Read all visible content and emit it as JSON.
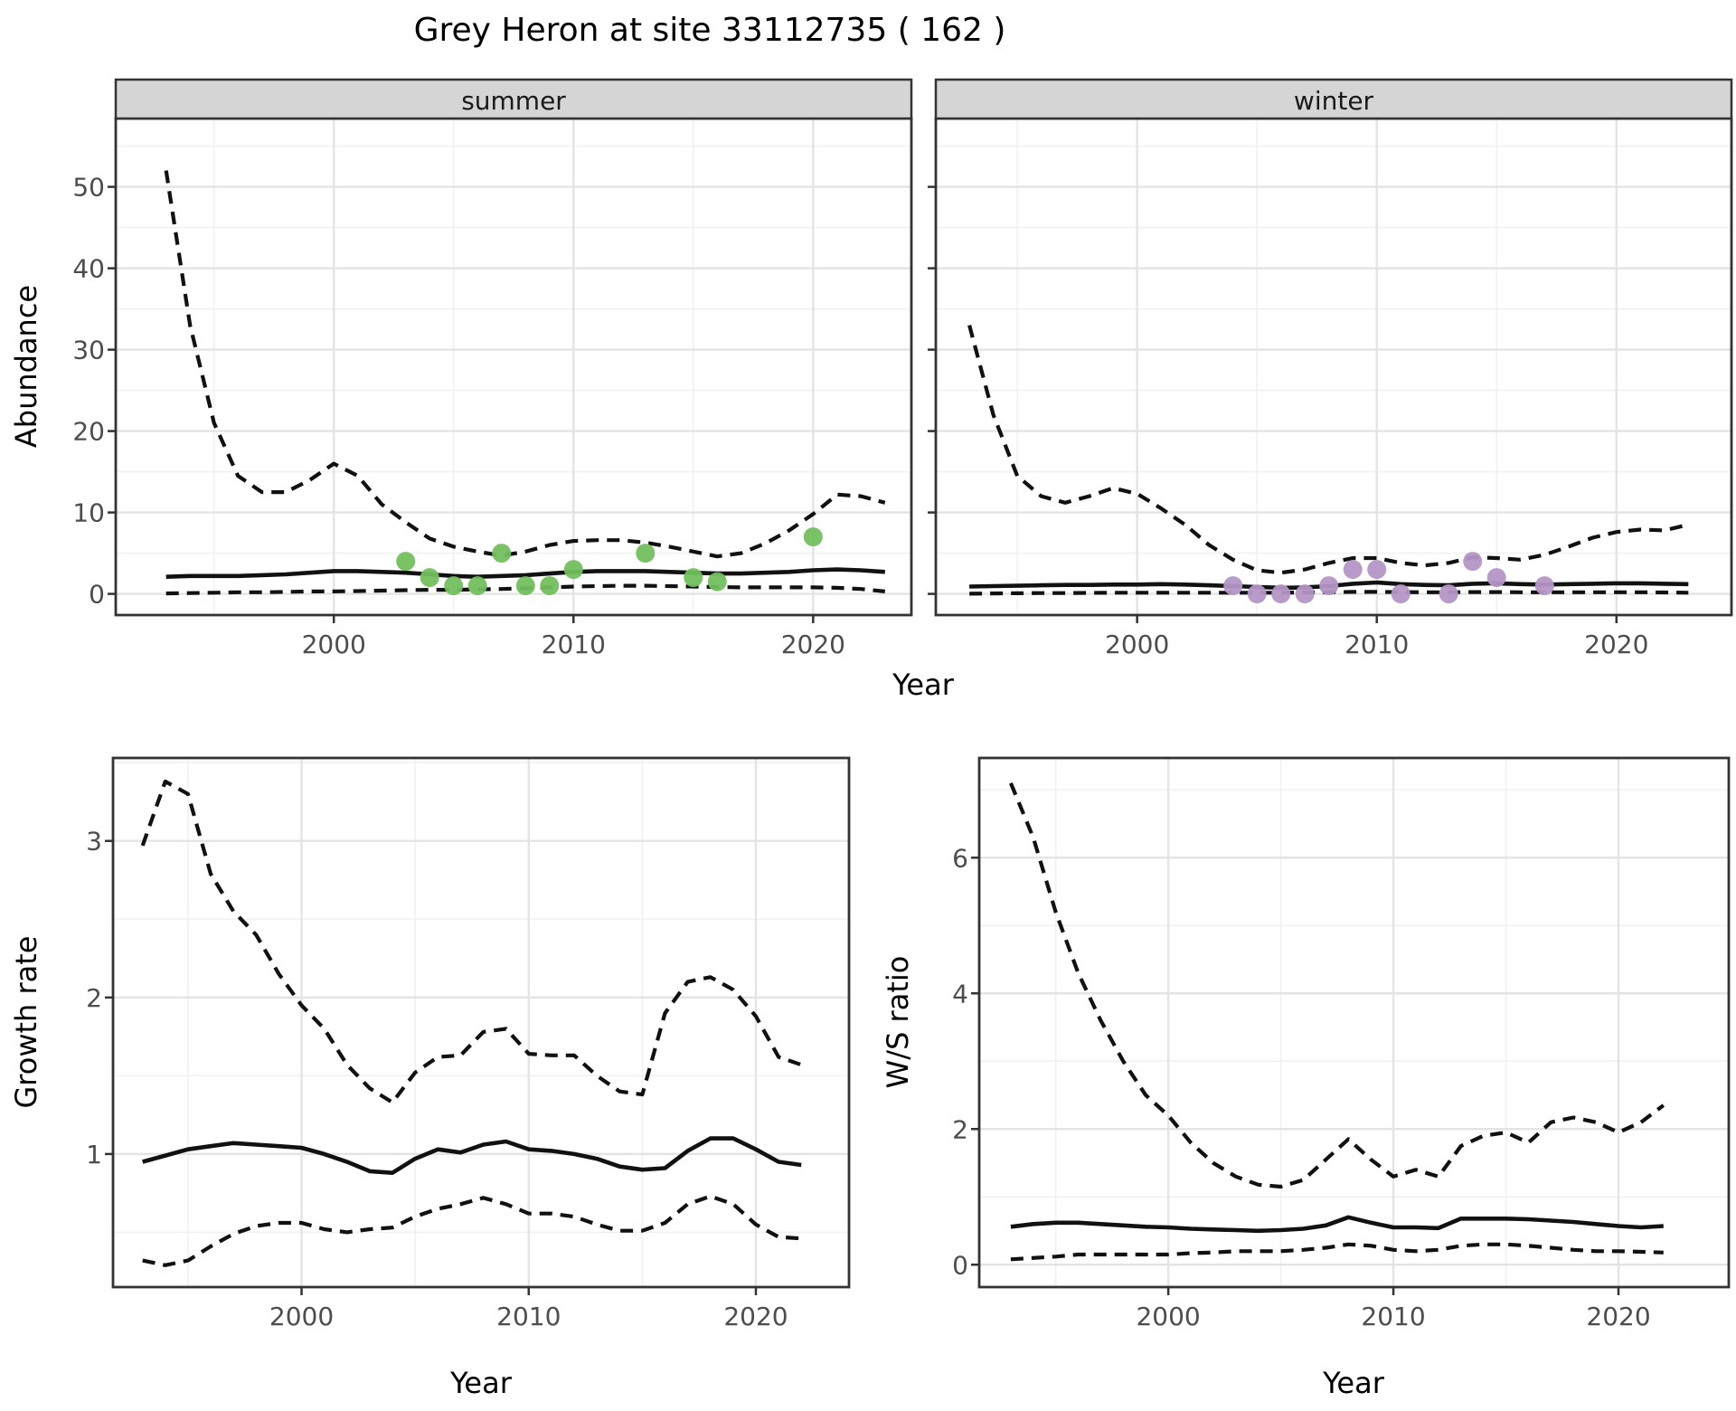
{
  "title": "Grey Heron at site 33112735 ( 162 )",
  "labels": {
    "x_axis": "Year"
  },
  "colors": {
    "summer_points": "#72c05e",
    "winter_points": "#b496c6",
    "fit_line": "#111111",
    "ci_line": "#111111",
    "strip_fill": "#d5d5d5",
    "panel_border": "#333333",
    "grid_major": "#e4e4e4",
    "grid_minor": "#f1f1f1",
    "tick_text": "#4d4d4d"
  },
  "chart_data": [
    {
      "id": "abundance-summer",
      "type": "line",
      "facet_label": "summer",
      "ylabel": "Abundance",
      "xlabel": "Year",
      "x_ticks": [
        2000,
        2010,
        2020
      ],
      "x_minor_ticks": [
        1995,
        2005,
        2015
      ],
      "y_ticks": [
        0,
        10,
        20,
        30,
        40,
        50
      ],
      "y_minor_ticks": [
        5,
        15,
        25,
        35,
        45,
        55
      ],
      "xlim": [
        1990.9,
        2024.1
      ],
      "ylim": [
        -2.6,
        58.4
      ],
      "x": [
        1993,
        1994,
        1995,
        1996,
        1997,
        1998,
        1999,
        2000,
        2001,
        2002,
        2003,
        2004,
        2005,
        2006,
        2007,
        2008,
        2009,
        2010,
        2011,
        2012,
        2013,
        2014,
        2015,
        2016,
        2017,
        2018,
        2019,
        2020,
        2021,
        2022,
        2023
      ],
      "series": [
        {
          "name": "upper-95ci",
          "style": "dashed",
          "values": [
            52,
            33,
            21,
            14.5,
            12.5,
            12.5,
            14,
            16,
            14.5,
            11,
            8.8,
            6.8,
            5.8,
            5.2,
            4.7,
            5.2,
            6.0,
            6.5,
            6.6,
            6.6,
            6.3,
            5.8,
            5.2,
            4.6,
            5.0,
            6.2,
            7.8,
            9.8,
            12.2,
            12.0,
            11.2
          ]
        },
        {
          "name": "median-fit",
          "style": "solid",
          "values": [
            2.1,
            2.2,
            2.2,
            2.2,
            2.3,
            2.4,
            2.6,
            2.8,
            2.8,
            2.7,
            2.6,
            2.4,
            2.2,
            2.1,
            2.2,
            2.3,
            2.5,
            2.7,
            2.8,
            2.8,
            2.8,
            2.7,
            2.6,
            2.5,
            2.5,
            2.6,
            2.7,
            2.9,
            3.0,
            2.9,
            2.7
          ]
        },
        {
          "name": "lower-95ci",
          "style": "dashed",
          "values": [
            0.05,
            0.1,
            0.15,
            0.2,
            0.2,
            0.25,
            0.3,
            0.3,
            0.35,
            0.4,
            0.45,
            0.5,
            0.5,
            0.55,
            0.6,
            0.7,
            0.8,
            0.9,
            0.95,
            1.0,
            1.0,
            0.95,
            0.9,
            0.85,
            0.8,
            0.8,
            0.8,
            0.8,
            0.75,
            0.6,
            0.3
          ]
        }
      ],
      "observations": {
        "name": "summer-counts",
        "color_key": "summer_points",
        "x": [
          2003,
          2004,
          2005,
          2006,
          2007,
          2008,
          2009,
          2010,
          2013,
          2015,
          2016,
          2020
        ],
        "values": [
          4,
          2,
          1,
          1,
          5,
          1,
          1,
          3,
          5,
          2,
          1.5,
          7
        ]
      }
    },
    {
      "id": "abundance-winter",
      "type": "line",
      "facet_label": "winter",
      "ylabel": "Abundance",
      "xlabel": "Year",
      "x_ticks": [
        2000,
        2010,
        2020
      ],
      "x_minor_ticks": [
        1995,
        2005,
        2015
      ],
      "y_ticks": [
        0,
        10,
        20,
        30,
        40,
        50
      ],
      "y_minor_ticks": [
        5,
        15,
        25,
        35,
        45,
        55
      ],
      "xlim": [
        1991.6,
        2024.8
      ],
      "ylim": [
        -2.6,
        58.4
      ],
      "x": [
        1993,
        1994,
        1995,
        1996,
        1997,
        1998,
        1999,
        2000,
        2001,
        2002,
        2003,
        2004,
        2005,
        2006,
        2007,
        2008,
        2009,
        2010,
        2011,
        2012,
        2013,
        2014,
        2015,
        2016,
        2017,
        2018,
        2019,
        2020,
        2021,
        2022,
        2023
      ],
      "series": [
        {
          "name": "upper-95ci",
          "style": "dashed",
          "values": [
            33,
            22,
            14.5,
            12,
            11.2,
            12,
            13,
            12.3,
            10.5,
            8.5,
            6.0,
            4.2,
            2.9,
            2.6,
            3.0,
            3.8,
            4.4,
            4.4,
            3.8,
            3.5,
            3.8,
            4.5,
            4.4,
            4.2,
            4.8,
            5.8,
            6.9,
            7.6,
            7.9,
            7.8,
            8.5
          ]
        },
        {
          "name": "median-fit",
          "style": "solid",
          "values": [
            0.9,
            0.95,
            1.0,
            1.05,
            1.1,
            1.1,
            1.15,
            1.15,
            1.2,
            1.15,
            1.05,
            0.95,
            0.85,
            0.75,
            0.8,
            0.95,
            1.25,
            1.4,
            1.2,
            1.1,
            1.05,
            1.25,
            1.3,
            1.2,
            1.15,
            1.2,
            1.25,
            1.3,
            1.3,
            1.25,
            1.2
          ]
        },
        {
          "name": "lower-95ci",
          "style": "dashed",
          "values": [
            0.02,
            0.05,
            0.08,
            0.1,
            0.1,
            0.12,
            0.15,
            0.15,
            0.15,
            0.15,
            0.15,
            0.15,
            0.15,
            0.15,
            0.18,
            0.2,
            0.25,
            0.25,
            0.22,
            0.2,
            0.2,
            0.22,
            0.22,
            0.2,
            0.2,
            0.2,
            0.2,
            0.2,
            0.2,
            0.18,
            0.15
          ]
        }
      ],
      "observations": {
        "name": "winter-counts",
        "color_key": "winter_points",
        "x": [
          2004,
          2005,
          2006,
          2007,
          2008,
          2009,
          2010,
          2011,
          2013,
          2014,
          2015,
          2017
        ],
        "values": [
          1,
          0,
          0,
          0,
          1,
          3,
          3,
          0,
          0,
          4,
          2,
          1
        ]
      }
    },
    {
      "id": "growth-rate",
      "type": "line",
      "facet_label": "",
      "ylabel": "Growth rate",
      "xlabel": "Year",
      "x_ticks": [
        2000,
        2010,
        2020
      ],
      "x_minor_ticks": [
        1995,
        2005,
        2015
      ],
      "y_ticks": [
        1,
        2,
        3
      ],
      "y_minor_ticks": [
        0.5,
        1.5,
        2.5,
        3.5
      ],
      "xlim": [
        1991.7,
        2024.1
      ],
      "ylim": [
        0.15,
        3.53
      ],
      "x": [
        1993,
        1994,
        1995,
        1996,
        1997,
        1998,
        1999,
        2000,
        2001,
        2002,
        2003,
        2004,
        2005,
        2006,
        2007,
        2008,
        2009,
        2010,
        2011,
        2012,
        2013,
        2014,
        2015,
        2016,
        2017,
        2018,
        2019,
        2020,
        2021,
        2022
      ],
      "series": [
        {
          "name": "upper-95ci",
          "style": "dashed",
          "values": [
            2.97,
            3.38,
            3.3,
            2.79,
            2.55,
            2.4,
            2.15,
            1.95,
            1.8,
            1.57,
            1.42,
            1.33,
            1.52,
            1.62,
            1.63,
            1.78,
            1.8,
            1.64,
            1.63,
            1.63,
            1.5,
            1.4,
            1.38,
            1.9,
            2.1,
            2.13,
            2.05,
            1.88,
            1.62,
            1.57
          ]
        },
        {
          "name": "median-fit",
          "style": "solid",
          "values": [
            0.95,
            0.99,
            1.03,
            1.05,
            1.07,
            1.06,
            1.05,
            1.04,
            1.0,
            0.95,
            0.89,
            0.88,
            0.97,
            1.03,
            1.01,
            1.06,
            1.08,
            1.03,
            1.02,
            1.0,
            0.97,
            0.92,
            0.9,
            0.91,
            1.02,
            1.1,
            1.1,
            1.03,
            0.95,
            0.93
          ]
        },
        {
          "name": "lower-95ci",
          "style": "dashed",
          "values": [
            0.32,
            0.29,
            0.32,
            0.41,
            0.49,
            0.54,
            0.56,
            0.56,
            0.52,
            0.5,
            0.52,
            0.53,
            0.6,
            0.65,
            0.68,
            0.72,
            0.68,
            0.62,
            0.62,
            0.6,
            0.55,
            0.51,
            0.51,
            0.56,
            0.68,
            0.73,
            0.68,
            0.55,
            0.47,
            0.46
          ]
        }
      ],
      "observations": null
    },
    {
      "id": "ws-ratio",
      "type": "line",
      "facet_label": "",
      "ylabel": "W/S ratio",
      "xlabel": "Year",
      "x_ticks": [
        2000,
        2010,
        2020
      ],
      "x_minor_ticks": [
        1995,
        2005,
        2015
      ],
      "y_ticks": [
        0,
        2,
        4,
        6
      ],
      "y_minor_ticks": [
        1,
        3,
        5,
        7
      ],
      "xlim": [
        1991.6,
        2024.9
      ],
      "ylim": [
        -0.33,
        7.47
      ],
      "x": [
        1993,
        1994,
        1995,
        1996,
        1997,
        1998,
        1999,
        2000,
        2001,
        2002,
        2003,
        2004,
        2005,
        2006,
        2007,
        2008,
        2009,
        2010,
        2011,
        2012,
        2013,
        2014,
        2015,
        2016,
        2017,
        2018,
        2019,
        2020,
        2021,
        2022
      ],
      "series": [
        {
          "name": "upper-95ci",
          "style": "dashed",
          "values": [
            7.1,
            6.3,
            5.2,
            4.3,
            3.6,
            3.0,
            2.5,
            2.2,
            1.8,
            1.5,
            1.3,
            1.18,
            1.15,
            1.25,
            1.55,
            1.85,
            1.55,
            1.3,
            1.4,
            1.3,
            1.75,
            1.9,
            1.95,
            1.8,
            2.1,
            2.17,
            2.1,
            1.95,
            2.1,
            2.35
          ]
        },
        {
          "name": "median-fit",
          "style": "solid",
          "values": [
            0.56,
            0.6,
            0.62,
            0.62,
            0.6,
            0.58,
            0.56,
            0.55,
            0.53,
            0.52,
            0.51,
            0.5,
            0.51,
            0.53,
            0.58,
            0.7,
            0.62,
            0.55,
            0.55,
            0.54,
            0.68,
            0.68,
            0.68,
            0.67,
            0.65,
            0.63,
            0.6,
            0.57,
            0.55,
            0.57
          ]
        },
        {
          "name": "lower-95ci",
          "style": "dashed",
          "values": [
            0.08,
            0.1,
            0.12,
            0.15,
            0.15,
            0.15,
            0.15,
            0.15,
            0.17,
            0.18,
            0.2,
            0.2,
            0.2,
            0.22,
            0.25,
            0.3,
            0.28,
            0.22,
            0.2,
            0.22,
            0.28,
            0.3,
            0.3,
            0.28,
            0.25,
            0.22,
            0.2,
            0.2,
            0.19,
            0.18
          ]
        }
      ],
      "observations": null
    }
  ]
}
